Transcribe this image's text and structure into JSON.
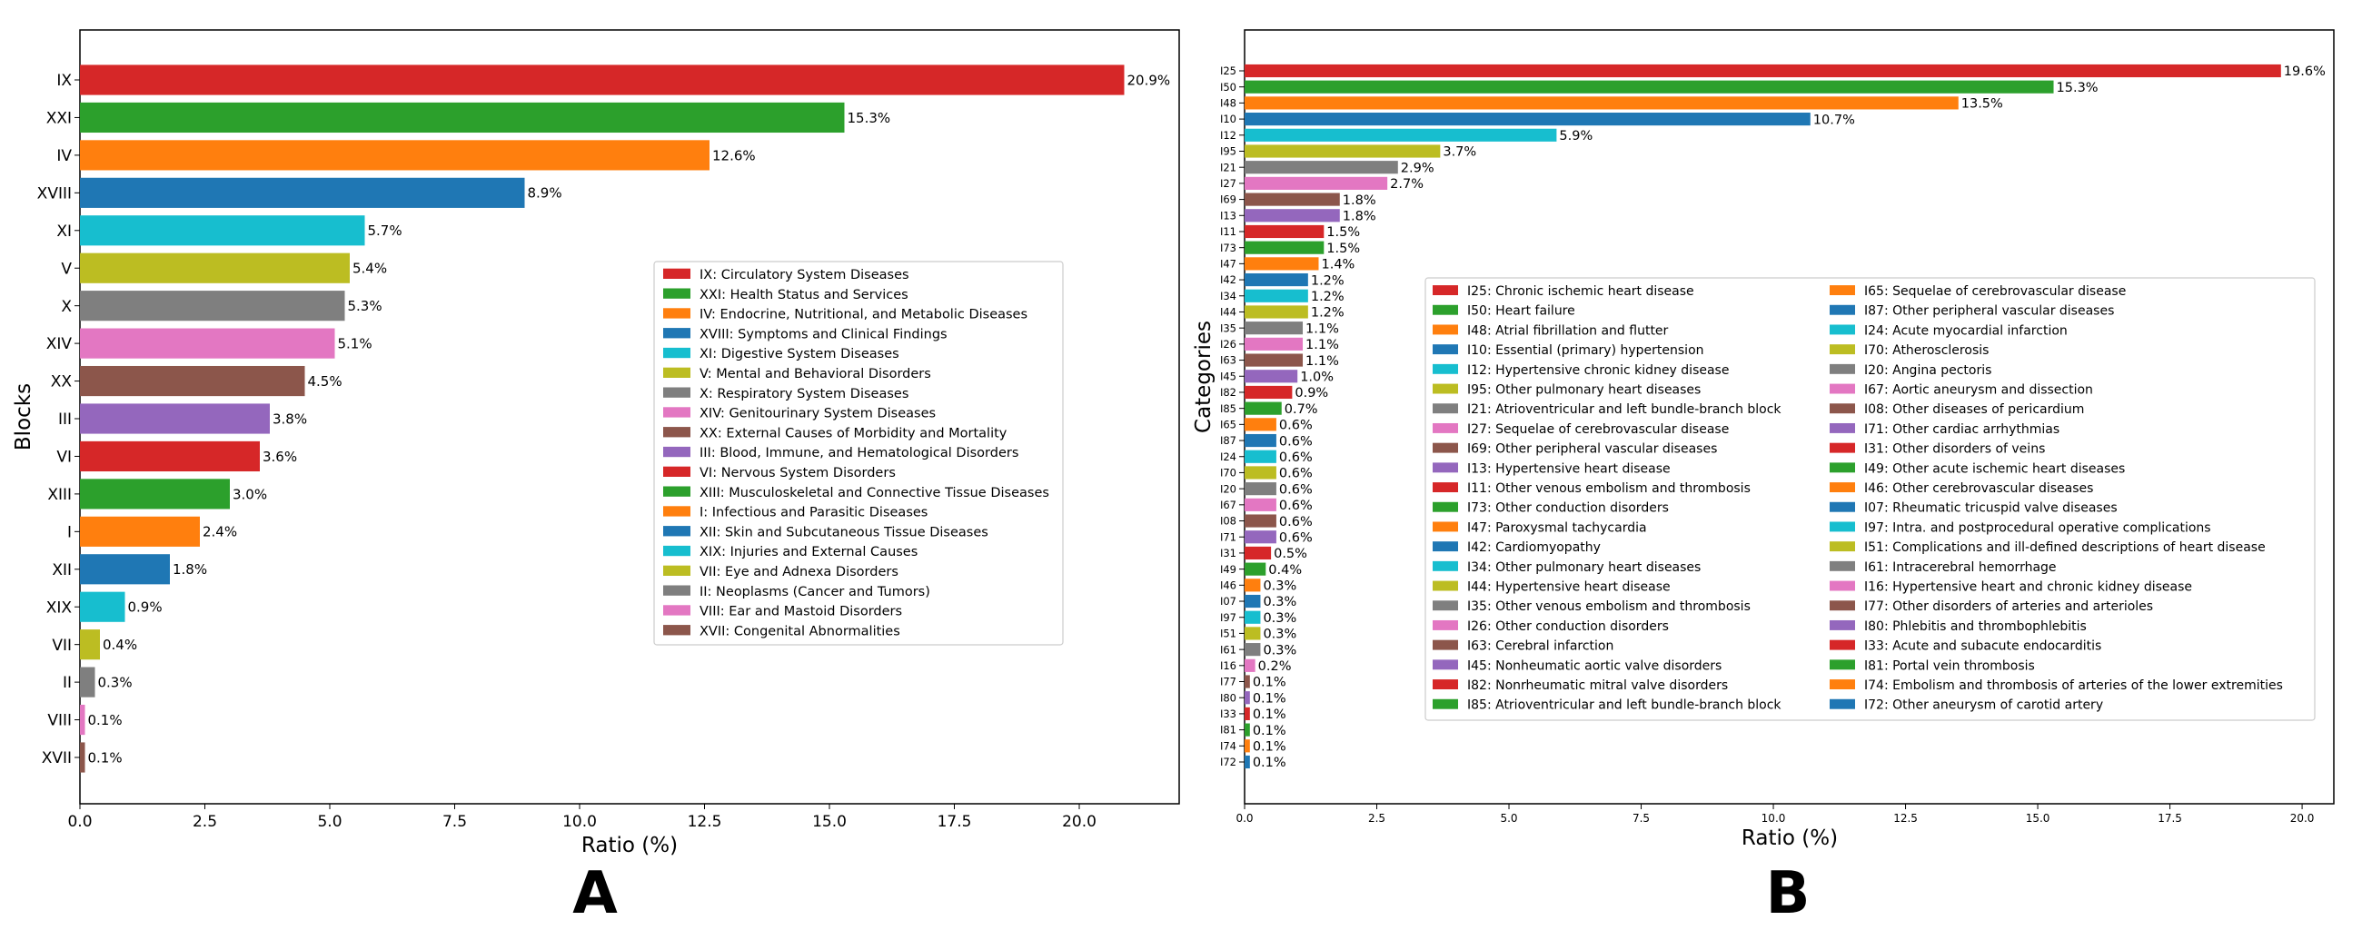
{
  "palette": [
    "#d62728",
    "#2ca02c",
    "#ff7f0e",
    "#1f77b4",
    "#17becf",
    "#bcbd22",
    "#7f7f7f",
    "#e377c2",
    "#8c564b",
    "#9467bd"
  ],
  "chart_data": [
    {
      "panel": "A",
      "type": "bar",
      "orientation": "horizontal",
      "xlabel": "Ratio (%)",
      "ylabel": "Blocks",
      "xlim": [
        0,
        22
      ],
      "xticks": [
        "0.0",
        "2.5",
        "5.0",
        "7.5",
        "10.0",
        "12.5",
        "15.0",
        "17.5",
        "20.0"
      ],
      "grid": false,
      "legend_position": "center-right",
      "categories": [
        "IX",
        "XXI",
        "IV",
        "XVIII",
        "XI",
        "V",
        "X",
        "XIV",
        "XX",
        "III",
        "VI",
        "XIII",
        "I",
        "XII",
        "XIX",
        "VII",
        "II",
        "VIII",
        "XVII"
      ],
      "values": [
        20.9,
        15.3,
        12.6,
        8.9,
        5.7,
        5.4,
        5.3,
        5.1,
        4.5,
        3.8,
        3.6,
        3.0,
        2.4,
        1.8,
        0.9,
        0.4,
        0.3,
        0.1,
        0.1
      ],
      "value_labels": [
        "20.9%",
        "15.3%",
        "12.6%",
        "8.9%",
        "5.7%",
        "5.4%",
        "5.3%",
        "5.1%",
        "4.5%",
        "3.8%",
        "3.6%",
        "3.0%",
        "2.4%",
        "1.8%",
        "0.9%",
        "0.4%",
        "0.3%",
        "0.1%",
        "0.1%"
      ],
      "legend": [
        "IX: Circulatory System Diseases",
        "XXI: Health Status and Services",
        "IV: Endocrine, Nutritional, and Metabolic Diseases",
        "XVIII: Symptoms and Clinical Findings",
        "XI: Digestive System Diseases",
        "V: Mental and Behavioral Disorders",
        "X: Respiratory System Diseases",
        "XIV: Genitourinary System Diseases",
        "XX: External Causes of Morbidity and Mortality",
        "III: Blood, Immune, and Hematological Disorders",
        "VI: Nervous System Disorders",
        "XIII: Musculoskeletal and Connective Tissue Diseases",
        "I: Infectious and Parasitic Diseases",
        "XII: Skin and Subcutaneous Tissue Diseases",
        "XIX: Injuries and External Causes",
        "VII: Eye and Adnexa Disorders",
        "II: Neoplasms (Cancer and Tumors)",
        "VIII: Ear and Mastoid Disorders",
        "XVII: Congenital Abnormalities"
      ]
    },
    {
      "panel": "B",
      "type": "bar",
      "orientation": "horizontal",
      "xlabel": "Ratio (%)",
      "ylabel": "Categories",
      "xlim": [
        0,
        20.6
      ],
      "xticks": [
        "0.0",
        "2.5",
        "5.0",
        "7.5",
        "10.0",
        "12.5",
        "15.0",
        "17.5",
        "20.0"
      ],
      "grid": false,
      "legend_position": "center-right",
      "categories": [
        "I25",
        "I50",
        "I48",
        "I10",
        "I12",
        "I95",
        "I21",
        "I27",
        "I69",
        "I13",
        "I11",
        "I73",
        "I47",
        "I42",
        "I34",
        "I44",
        "I35",
        "I26",
        "I63",
        "I45",
        "I82",
        "I85",
        "I65",
        "I87",
        "I24",
        "I70",
        "I20",
        "I67",
        "I08",
        "I71",
        "I31",
        "I49",
        "I46",
        "I07",
        "I97",
        "I51",
        "I61",
        "I16",
        "I77",
        "I80",
        "I33",
        "I81",
        "I74",
        "I72"
      ],
      "values": [
        19.6,
        15.3,
        13.5,
        10.7,
        5.9,
        3.7,
        2.9,
        2.7,
        1.8,
        1.8,
        1.5,
        1.5,
        1.4,
        1.2,
        1.2,
        1.2,
        1.1,
        1.1,
        1.1,
        1.0,
        0.9,
        0.7,
        0.6,
        0.6,
        0.6,
        0.6,
        0.6,
        0.6,
        0.6,
        0.6,
        0.5,
        0.4,
        0.3,
        0.3,
        0.3,
        0.3,
        0.3,
        0.2,
        0.1,
        0.1,
        0.1,
        0.1,
        0.1,
        0.1
      ],
      "value_labels": [
        "19.6%",
        "15.3%",
        "13.5%",
        "10.7%",
        "5.9%",
        "3.7%",
        "2.9%",
        "2.7%",
        "1.8%",
        "1.8%",
        "1.5%",
        "1.5%",
        "1.4%",
        "1.2%",
        "1.2%",
        "1.2%",
        "1.1%",
        "1.1%",
        "1.1%",
        "1.0%",
        "0.9%",
        "0.7%",
        "0.6%",
        "0.6%",
        "0.6%",
        "0.6%",
        "0.6%",
        "0.6%",
        "0.6%",
        "0.6%",
        "0.5%",
        "0.4%",
        "0.3%",
        "0.3%",
        "0.3%",
        "0.3%",
        "0.3%",
        "0.2%",
        "0.1%",
        "0.1%",
        "0.1%",
        "0.1%",
        "0.1%",
        "0.1%"
      ],
      "legend": [
        "I25: Chronic ischemic heart disease",
        "I50: Heart failure",
        "I48: Atrial fibrillation and flutter",
        "I10: Essential (primary) hypertension",
        "I12: Hypertensive chronic kidney disease",
        "I95: Other pulmonary heart diseases",
        "I21: Atrioventricular and left bundle-branch block",
        "I27: Sequelae of cerebrovascular disease",
        "I69: Other peripheral vascular diseases",
        "I13: Hypertensive heart disease",
        "I11: Other venous embolism and thrombosis",
        "I73: Other conduction disorders",
        "I47: Paroxysmal tachycardia",
        "I42: Cardiomyopathy",
        "I34: Other pulmonary heart diseases",
        "I44: Hypertensive heart disease",
        "I35: Other venous embolism and thrombosis",
        "I26: Other conduction disorders",
        "I63: Cerebral infarction",
        "I45: Nonheumatic aortic valve disorders",
        "I82: Nonrheumatic mitral valve disorders",
        "I85: Atrioventricular and left bundle-branch block",
        "I65: Sequelae of cerebrovascular disease",
        "I87: Other peripheral vascular diseases",
        "I24: Acute myocardial infarction",
        "I70: Atherosclerosis",
        "I20: Angina pectoris",
        "I67: Aortic aneurysm and dissection",
        "I08: Other diseases of pericardium",
        "I71: Other cardiac arrhythmias",
        "I31: Other disorders of veins",
        "I49: Other acute ischemic heart diseases",
        "I46: Other cerebrovascular diseases",
        "I07: Rheumatic tricuspid valve diseases",
        "I97: Intra. and postprocedural operative complications",
        "I51: Complications and ill-defined descriptions of heart disease",
        "I61: Intracerebral hemorrhage",
        "I16: Hypertensive heart and chronic kidney disease",
        "I77: Other disorders of arteries and arterioles",
        "I80: Phlebitis and thrombophlebitis",
        "I33: Acute and subacute endocarditis",
        "I81: Portal vein thrombosis",
        "I74: Embolism and thrombosis of arteries of the lower extremities",
        "I72: Other aneurysm of carotid artery"
      ]
    }
  ],
  "panel_labels": [
    "A",
    "B"
  ]
}
